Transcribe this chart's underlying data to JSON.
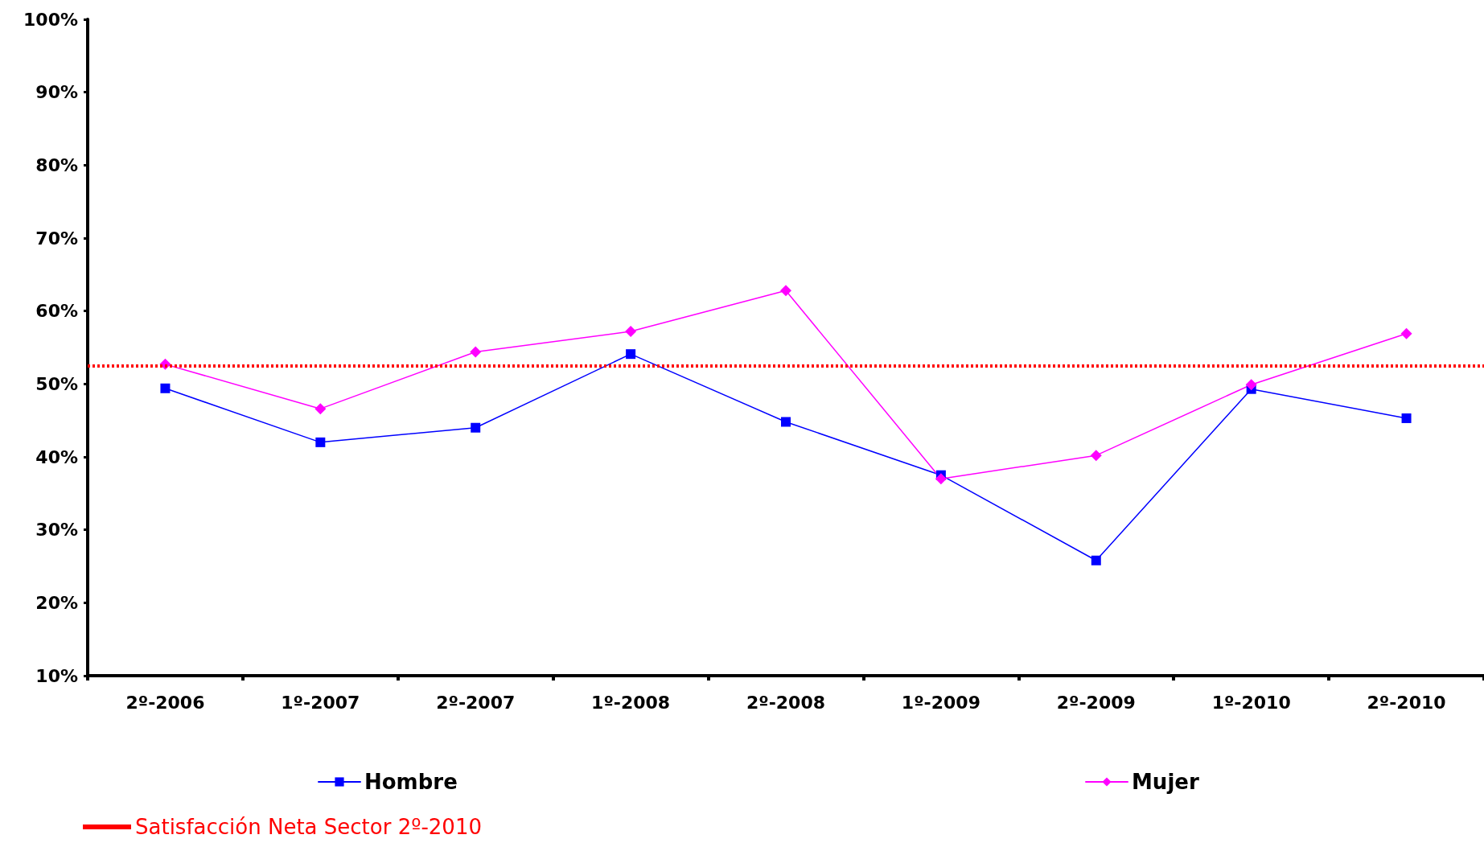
{
  "chart_data": {
    "type": "line",
    "categories": [
      "2º-2006",
      "1º-2007",
      "2º-2007",
      "1º-2008",
      "2º-2008",
      "1º-2009",
      "2º-2009",
      "1º-2010",
      "2º-2010"
    ],
    "series": [
      {
        "name": "Hombre",
        "color": "#0000ff",
        "marker": "square",
        "values": [
          49.4,
          42.0,
          44.0,
          54.1,
          44.8,
          37.5,
          25.8,
          49.3,
          45.3
        ]
      },
      {
        "name": "Mujer",
        "color": "#ff00ff",
        "marker": "diamond",
        "values": [
          52.7,
          46.6,
          54.4,
          57.2,
          62.8,
          37.0,
          40.2,
          49.9,
          56.9
        ]
      }
    ],
    "ylim": [
      10,
      100
    ],
    "yticks": [
      {
        "value": 10,
        "label": "10%"
      },
      {
        "value": 20,
        "label": "20%"
      },
      {
        "value": 30,
        "label": "30%"
      },
      {
        "value": 40,
        "label": "40%"
      },
      {
        "value": 50,
        "label": "50%"
      },
      {
        "value": 60,
        "label": "60%"
      },
      {
        "value": 70,
        "label": "70%"
      },
      {
        "value": 80,
        "label": "80%"
      },
      {
        "value": 90,
        "label": "90%"
      },
      {
        "value": 100,
        "label": "100%"
      }
    ],
    "ref_lines": [
      {
        "axis": "y",
        "value": 52.5,
        "label": "Satisfacción Neta Sector 2º-2010",
        "color": "#ff0000",
        "line_style": "dotted"
      }
    ],
    "grid": false,
    "legend": "bottom",
    "line_style": "solid"
  }
}
